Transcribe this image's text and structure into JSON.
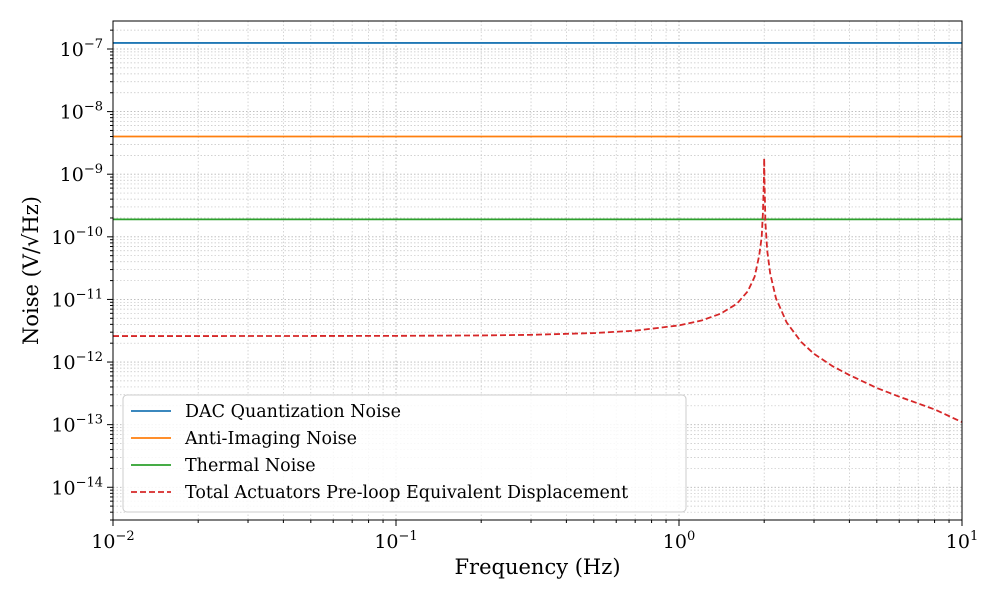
{
  "chart_data": {
    "type": "line",
    "title": "",
    "xlabel": "Frequency (Hz)",
    "ylabel": "Noise (V/√Hz)",
    "xscale": "log",
    "yscale": "log",
    "xlim": [
      0.01,
      10
    ],
    "ylim": [
      3e-15,
      2.8e-07
    ],
    "grid": true,
    "legend_position": "lower-left",
    "x_ticks": [
      {
        "value": 0.01,
        "base": "10",
        "exp": "−2"
      },
      {
        "value": 0.1,
        "base": "10",
        "exp": "−1"
      },
      {
        "value": 1,
        "base": "10",
        "exp": "0"
      },
      {
        "value": 10,
        "base": "10",
        "exp": "1"
      }
    ],
    "y_ticks": [
      {
        "value": 1e-14,
        "base": "10",
        "exp": "−14"
      },
      {
        "value": 1e-13,
        "base": "10",
        "exp": "−13"
      },
      {
        "value": 1e-12,
        "base": "10",
        "exp": "−12"
      },
      {
        "value": 1e-11,
        "base": "10",
        "exp": "−11"
      },
      {
        "value": 1e-10,
        "base": "10",
        "exp": "−10"
      },
      {
        "value": 1e-09,
        "base": "10",
        "exp": "−9"
      },
      {
        "value": 1e-08,
        "base": "10",
        "exp": "−8"
      },
      {
        "value": 1e-07,
        "base": "10",
        "exp": "−7"
      }
    ],
    "series": [
      {
        "name": "DAC Quantization Noise",
        "color": "#1f77b4",
        "style": "solid",
        "x": [
          0.01,
          10
        ],
        "y": [
          1.25e-07,
          1.25e-07
        ]
      },
      {
        "name": "Anti-Imaging Noise",
        "color": "#ff7f0e",
        "style": "solid",
        "x": [
          0.01,
          10
        ],
        "y": [
          4e-09,
          4e-09
        ]
      },
      {
        "name": "Thermal Noise",
        "color": "#2ca02c",
        "style": "solid",
        "x": [
          0.01,
          10
        ],
        "y": [
          1.9e-10,
          1.9e-10
        ]
      },
      {
        "name": "Total Actuators Pre-loop Equivalent Displacement",
        "color": "#d62728",
        "style": "dashed",
        "x": [
          0.01,
          0.02,
          0.05,
          0.1,
          0.2,
          0.3,
          0.5,
          0.7,
          1.0,
          1.2,
          1.4,
          1.6,
          1.75,
          1.85,
          1.92,
          1.96,
          1.98,
          1.995,
          2.0,
          2.005,
          2.02,
          2.05,
          2.1,
          2.2,
          2.4,
          2.7,
          3.0,
          3.5,
          4.0,
          5.0,
          6.0,
          8.0,
          10.0
        ],
        "y": [
          2.6e-12,
          2.6e-12,
          2.61e-12,
          2.62e-12,
          2.66e-12,
          2.72e-12,
          2.9e-12,
          3.17e-12,
          3.85e-12,
          4.6e-12,
          5.9e-12,
          8.5e-12,
          1.35e-11,
          2.3e-11,
          5e-11,
          1e-10,
          2.5e-10,
          8e-10,
          1.8e-09,
          8e-10,
          1.7e-10,
          6e-11,
          2.6e-11,
          1.05e-11,
          4.3e-12,
          2.1e-12,
          1.35e-12,
          8.5e-13,
          6.2e-13,
          3.85e-13,
          2.8e-13,
          1.75e-13,
          1.1e-13
        ]
      }
    ]
  }
}
